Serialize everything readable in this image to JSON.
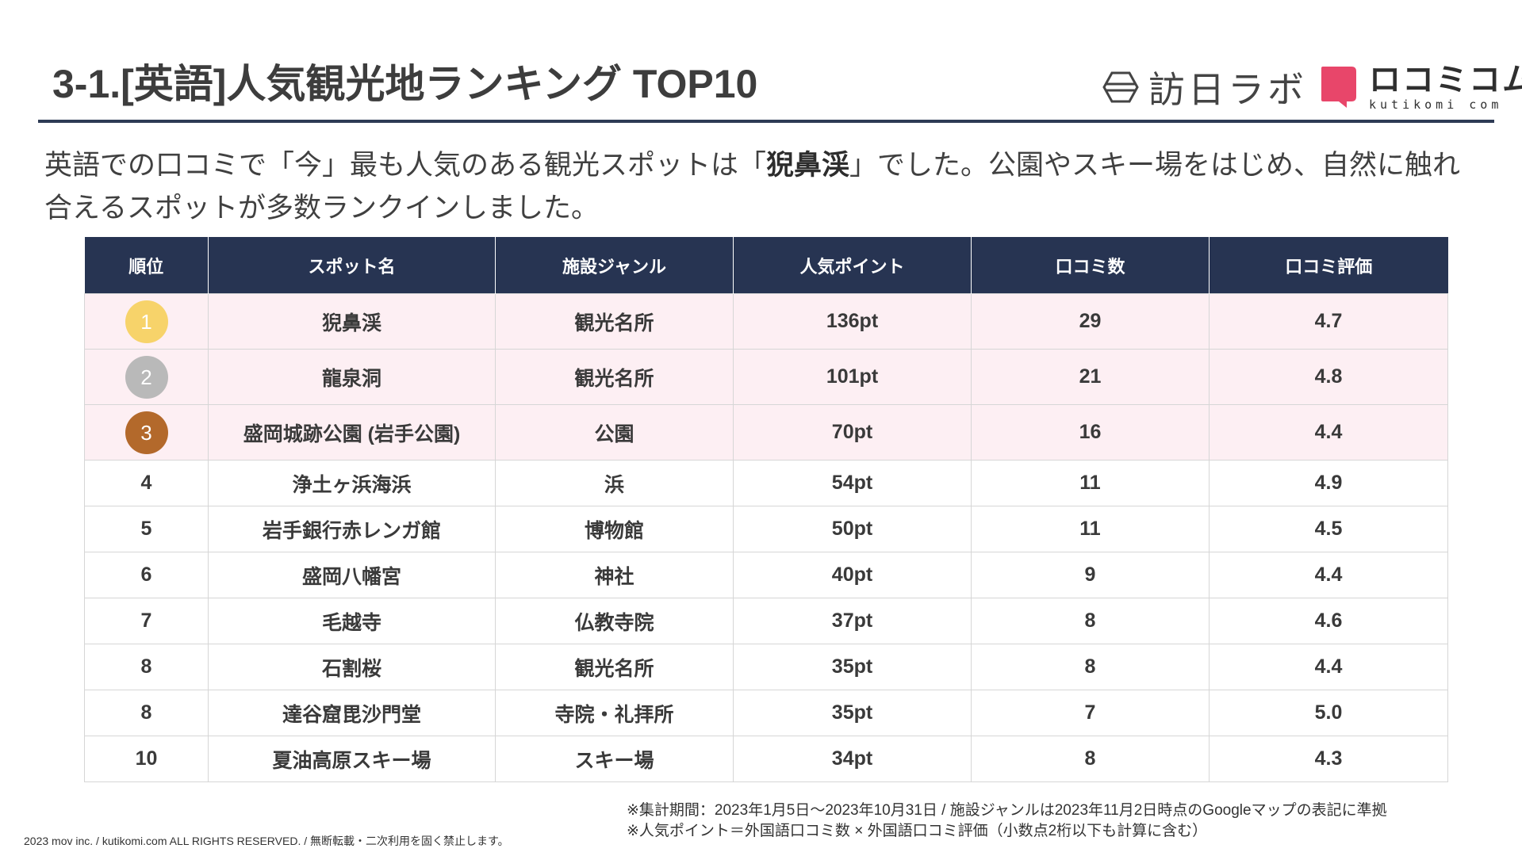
{
  "title": "3-1.[英語]人気観光地ランキング TOP10",
  "logos": {
    "inbound_lab": "訪日ラボ",
    "kutikomi_jp": "ロコミコム",
    "kutikomi_en": "kutikomi com"
  },
  "lead": {
    "part1": "英語での口コミで「今」最も人気のある観光スポットは「",
    "highlight": "猊鼻渓",
    "part2": "」でした。公園やスキー場をはじめ、自然に触れ合えるスポットが多数ランクインしました。"
  },
  "table": {
    "headers": [
      "順位",
      "スポット名",
      "施設ジャンル",
      "人気ポイント",
      "口コミ数",
      "口コミ評価"
    ],
    "rows": [
      {
        "rank": "1",
        "spot": "猊鼻渓",
        "genre": "観光名所",
        "points": "136pt",
        "reviews": "29",
        "rating": "4.7",
        "medal": "gold"
      },
      {
        "rank": "2",
        "spot": "龍泉洞",
        "genre": "観光名所",
        "points": "101pt",
        "reviews": "21",
        "rating": "4.8",
        "medal": "silver"
      },
      {
        "rank": "3",
        "spot": "盛岡城跡公園 (岩手公園)",
        "genre": "公園",
        "points": "70pt",
        "reviews": "16",
        "rating": "4.4",
        "medal": "bronze"
      },
      {
        "rank": "4",
        "spot": "浄土ヶ浜海浜",
        "genre": "浜",
        "points": "54pt",
        "reviews": "11",
        "rating": "4.9"
      },
      {
        "rank": "5",
        "spot": "岩手銀行赤レンガ館",
        "genre": "博物館",
        "points": "50pt",
        "reviews": "11",
        "rating": "4.5"
      },
      {
        "rank": "6",
        "spot": "盛岡八幡宮",
        "genre": "神社",
        "points": "40pt",
        "reviews": "9",
        "rating": "4.4"
      },
      {
        "rank": "7",
        "spot": "毛越寺",
        "genre": "仏教寺院",
        "points": "37pt",
        "reviews": "8",
        "rating": "4.6"
      },
      {
        "rank": "8",
        "spot": "石割桜",
        "genre": "観光名所",
        "points": "35pt",
        "reviews": "8",
        "rating": "4.4"
      },
      {
        "rank": "8",
        "spot": "達谷窟毘沙門堂",
        "genre": "寺院・礼拝所",
        "points": "35pt",
        "reviews": "7",
        "rating": "5.0"
      },
      {
        "rank": "10",
        "spot": "夏油高原スキー場",
        "genre": "スキー場",
        "points": "34pt",
        "reviews": "8",
        "rating": "4.3"
      }
    ]
  },
  "notes": {
    "line1": "※集計期間：2023年1月5日〜2023年10月31日 / 施設ジャンルは2023年11月2日時点のGoogleマップの表記に準拠",
    "line2": "※人気ポイント＝外国語口コミ数 × 外国語口コミ評価（小数点2桁以下も計算に含む）"
  },
  "copyright": "2023 mov inc. / kutikomi.com ALL RIGHTS RESERVED. / 無断転載・二次利用を固く禁止します。",
  "colors": {
    "header_bg": "#273452",
    "top3_row_bg": "#fdeff3",
    "gold": "#f7d36a",
    "silver": "#b9b9b9",
    "bronze": "#b3692b",
    "brand_pink": "#e8466a"
  }
}
